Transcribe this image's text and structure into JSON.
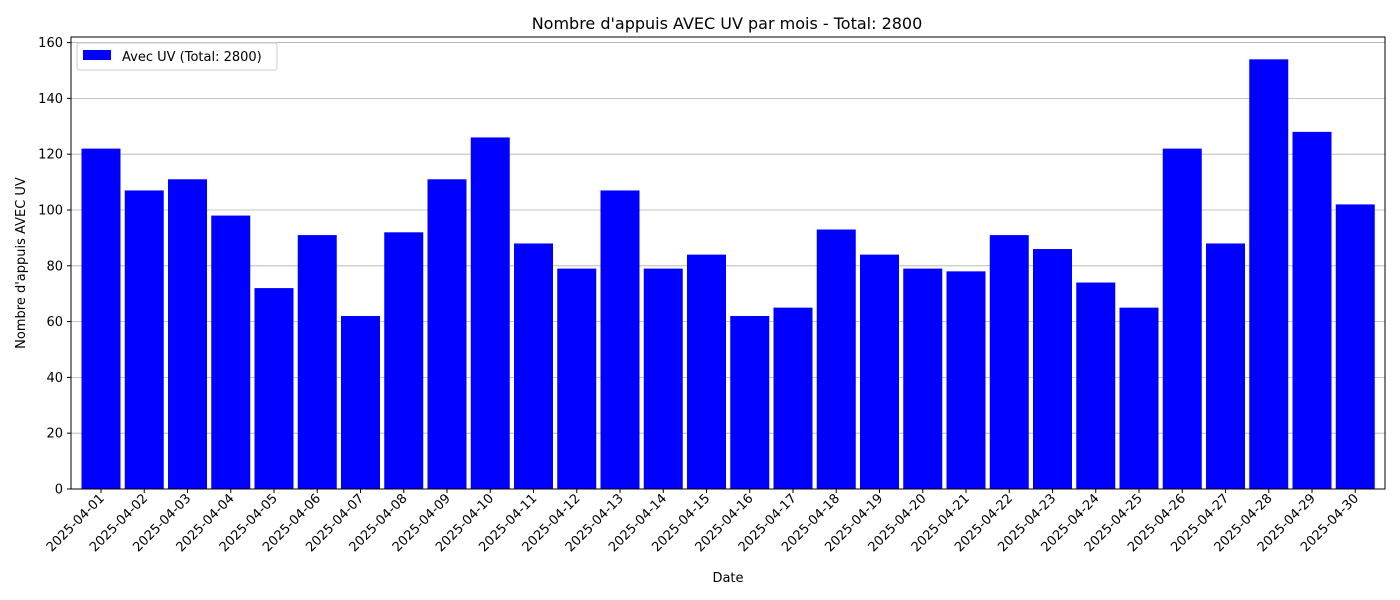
{
  "chart_data": {
    "type": "bar",
    "title": "Nombre d'appuis AVEC UV par mois - Total: 2800",
    "xlabel": "Date",
    "ylabel": "Nombre d'appuis AVEC UV",
    "ylim": [
      0,
      162
    ],
    "yticks": [
      0,
      20,
      40,
      60,
      80,
      100,
      120,
      140,
      160
    ],
    "grid": "horizontal",
    "legend": {
      "placement": "top-left",
      "entries": [
        "Avec UV (Total: 2800)"
      ]
    },
    "series": [
      {
        "name": "Avec UV (Total: 2800)",
        "color": "#0000ff",
        "values": [
          122,
          107,
          111,
          98,
          72,
          91,
          62,
          92,
          111,
          126,
          88,
          79,
          107,
          79,
          84,
          62,
          65,
          93,
          84,
          79,
          78,
          91,
          86,
          74,
          65,
          122,
          88,
          154,
          128,
          102
        ]
      }
    ],
    "categories": [
      "2025-04-01",
      "2025-04-02",
      "2025-04-03",
      "2025-04-04",
      "2025-04-05",
      "2025-04-06",
      "2025-04-07",
      "2025-04-08",
      "2025-04-09",
      "2025-04-10",
      "2025-04-11",
      "2025-04-12",
      "2025-04-13",
      "2025-04-14",
      "2025-04-15",
      "2025-04-16",
      "2025-04-17",
      "2025-04-18",
      "2025-04-19",
      "2025-04-20",
      "2025-04-21",
      "2025-04-22",
      "2025-04-23",
      "2025-04-24",
      "2025-04-25",
      "2025-04-26",
      "2025-04-27",
      "2025-04-28",
      "2025-04-29",
      "2025-04-30"
    ]
  }
}
